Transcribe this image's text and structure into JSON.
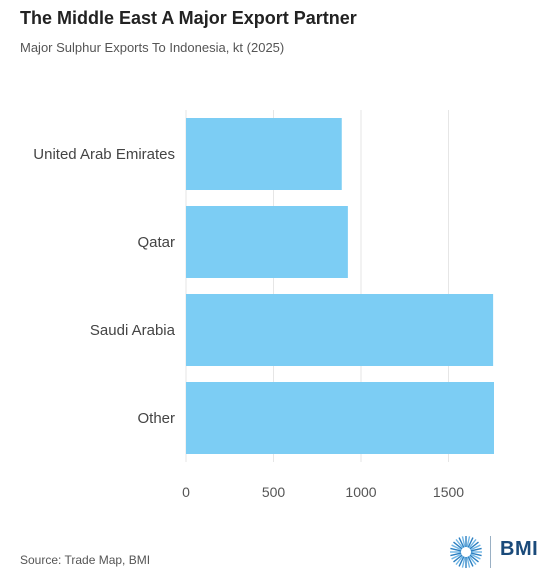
{
  "header": {
    "title": "The Middle East A Major Export Partner",
    "subtitle": "Major Sulphur Exports To Indonesia, kt (2025)"
  },
  "footer": {
    "source": "Source: Trade Map, BMI",
    "brand": "BMI"
  },
  "colors": {
    "bar": "#7ccdf4",
    "grid": "#e6e6e6",
    "axis_text": "#555555",
    "brand": "#1a4a7a"
  },
  "chart_data": {
    "type": "bar",
    "orientation": "horizontal",
    "title": "The Middle East A Major Export Partner",
    "subtitle": "Major Sulphur Exports To Indonesia, kt (2025)",
    "categories": [
      "United Arab Emirates",
      "Qatar",
      "Saudi Arabia",
      "Other"
    ],
    "values": [
      890,
      925,
      1755,
      1760
    ],
    "xlim": [
      0,
      1760
    ],
    "xticks": [
      0,
      500,
      1000,
      1500
    ],
    "xlabel": "",
    "ylabel": "",
    "grid": true,
    "legend": "none"
  }
}
